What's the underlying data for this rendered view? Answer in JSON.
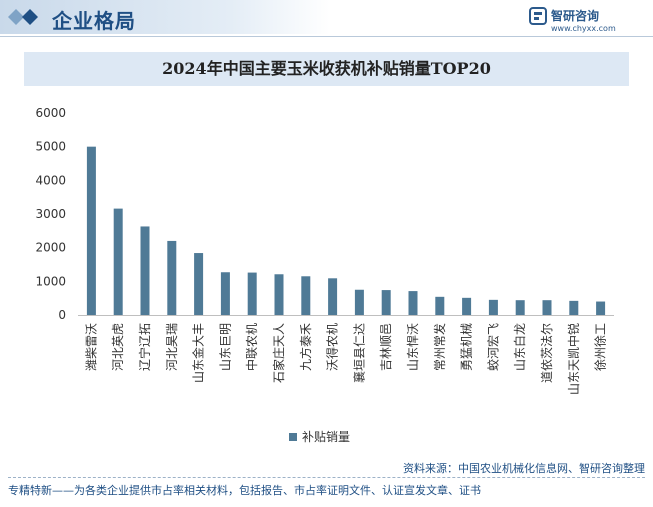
{
  "header": {
    "section_title": "企业格局",
    "brand_name": "智研咨询",
    "brand_url": "www.chyxx.com"
  },
  "chart_data": {
    "type": "bar",
    "title": "2024年中国主要玉米收获机补贴销量TOP20",
    "categories": [
      "潍柴雷沃",
      "河北英虎",
      "辽宁辽拓",
      "河北昊瑞",
      "山东金大丰",
      "山东巨明",
      "中联农机",
      "石家庄天人",
      "九方泰禾",
      "沃得农机",
      "襄垣县仁达",
      "吉林顺邑",
      "山东悍沃",
      "常州常发",
      "勇猛机械",
      "蛟河宏飞",
      "山东白龙",
      "道依茨法尔",
      "山东天凯中锐",
      "徐州徐工"
    ],
    "series": [
      {
        "name": "补贴销量",
        "values": [
          5000,
          3160,
          2630,
          2200,
          1840,
          1270,
          1260,
          1210,
          1150,
          1090,
          750,
          740,
          710,
          540,
          510,
          450,
          440,
          440,
          420,
          400
        ]
      }
    ],
    "ylim": [
      0,
      6000
    ],
    "yticks": [
      0,
      1000,
      2000,
      3000,
      4000,
      5000,
      6000
    ],
    "legend": "bottom-center",
    "grid": false,
    "colors": {
      "bar": "#4f7a96"
    }
  },
  "footer": {
    "source": "资料来源：中国农业机械化信息网、智研咨询整理",
    "tagline": "专精特新——为各类企业提供市占率相关材料，包括报告、市占率证明文件、认证宣发文章、证书"
  }
}
